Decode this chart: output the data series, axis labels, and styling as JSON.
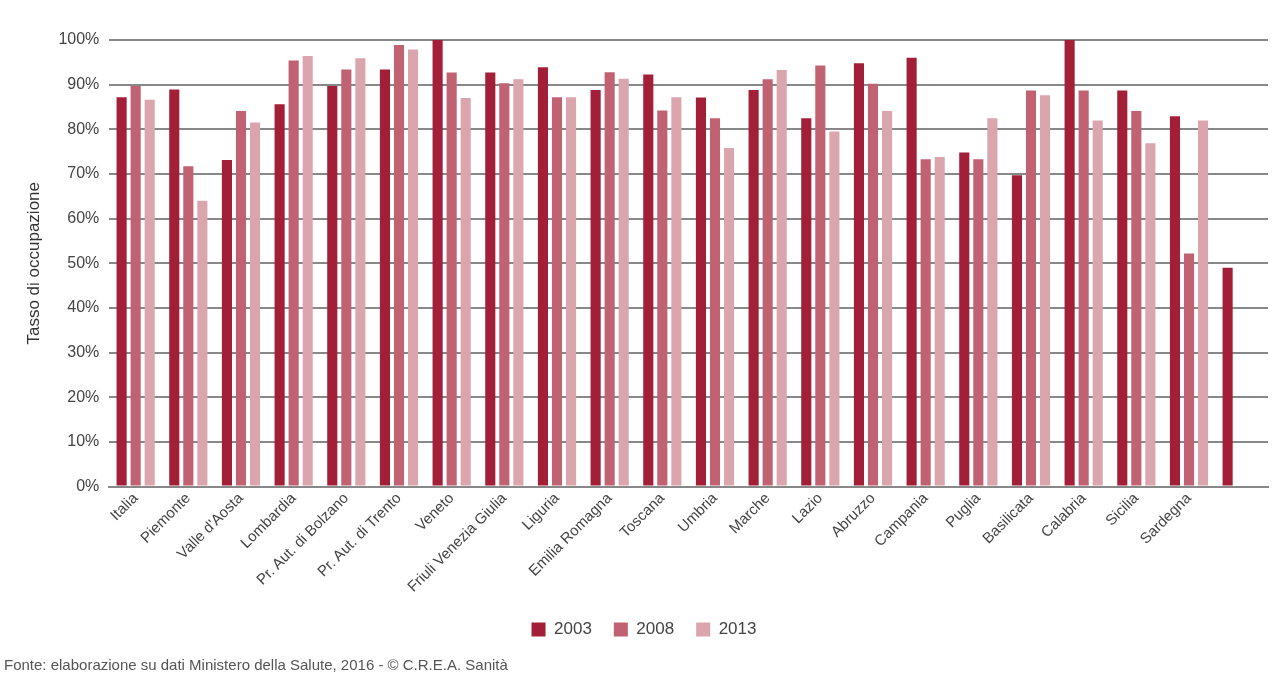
{
  "chart_data": {
    "type": "bar",
    "ylabel": "Tasso di occupazione",
    "categories": [
      "Italia",
      "Piemonte",
      "Valle d'Aosta",
      "Lombardia",
      "Pr. Aut. di Bolzano",
      "Pr. Aut. di Trento",
      "Veneto",
      "Friuli Venezia Giulia",
      "Liguria",
      "Emilia Romagna",
      "Toscana",
      "Umbria",
      "Marche",
      "Lazio",
      "Abruzzo",
      "Campania",
      "Puglia",
      "Basilicata",
      "Calabria",
      "Sicilia",
      "Sardegna",
      null
    ],
    "series": [
      {
        "name": "2003",
        "color": "#a31f37",
        "values": [
          87.2,
          88.9,
          73.1,
          85.6,
          89.7,
          93.4,
          100,
          92.7,
          93.9,
          88.8,
          92.3,
          87.1,
          88.8,
          82.5,
          94.8,
          96.0,
          74.8,
          69.7,
          100,
          88.7,
          82.9,
          49.0
        ]
      },
      {
        "name": "2008",
        "color": "#c06272",
        "values": [
          89.7,
          71.7,
          84.1,
          95.4,
          93.4,
          98.9,
          92.7,
          90.3,
          87.2,
          92.8,
          84.2,
          82.5,
          91.2,
          94.3,
          90.2,
          73.3,
          73.3,
          88.7,
          88.7,
          84.1,
          52.2,
          null
        ]
      },
      {
        "name": "2013",
        "color": "#dba5ae",
        "values": [
          86.6,
          64.0,
          81.5,
          96.4,
          95.9,
          97.9,
          87.0,
          91.2,
          87.2,
          91.3,
          87.2,
          75.8,
          93.3,
          79.5,
          84.1,
          73.8,
          82.5,
          87.6,
          82.0,
          76.9,
          82.0,
          null
        ]
      }
    ],
    "ylim": [
      0,
      100
    ],
    "yticks": [
      {
        "value": 0,
        "label": "0%"
      },
      {
        "value": 10,
        "label": "10%"
      },
      {
        "value": 20,
        "label": "20%"
      },
      {
        "value": 30,
        "label": "30%"
      },
      {
        "value": 40,
        "label": "40%"
      },
      {
        "value": 50,
        "label": "50%"
      },
      {
        "value": 60,
        "label": "60%"
      },
      {
        "value": 70,
        "label": "70%"
      },
      {
        "value": 80,
        "label": "80%"
      },
      {
        "value": 90,
        "label": "90%"
      },
      {
        "value": 100,
        "label": "100%"
      }
    ],
    "grid": "y",
    "legend": "bottom",
    "annotations": [
      "Fonte: elaborazione su dati Ministero della Salute, 2016 - © C.R.E.A. Sanità"
    ]
  }
}
